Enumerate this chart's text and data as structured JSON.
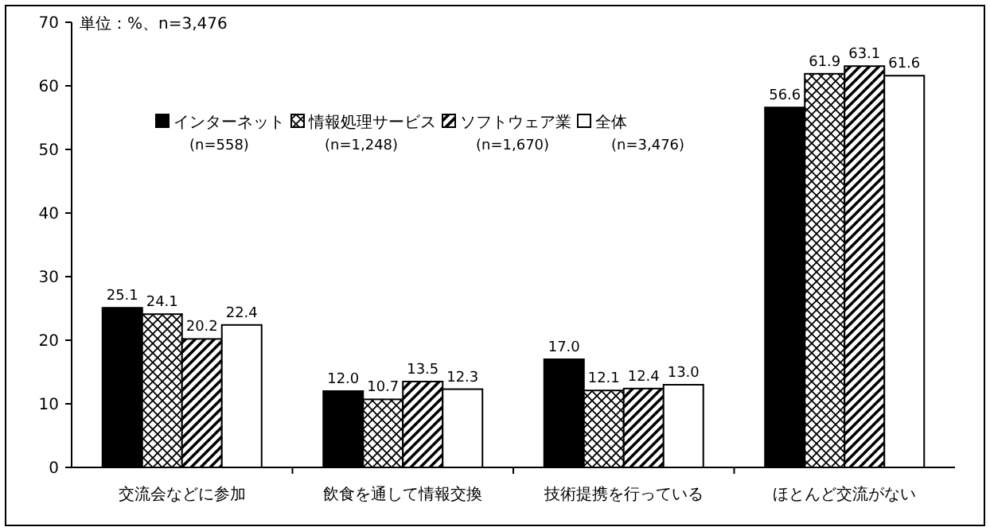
{
  "chart_data": {
    "type": "bar",
    "title": "単位：%、n=3,476",
    "categories": [
      "交流会などに参加",
      "飲食を通して情報交換",
      "技術提携を行っている",
      "ほとんど交流がない"
    ],
    "series": [
      {
        "name": "インターネット (n=558)",
        "color": "#000000",
        "values": [
          25.1,
          12.0,
          17.0,
          56.6
        ],
        "value_labels": [
          "25.1",
          "12.0",
          "17.0",
          "56.6"
        ]
      },
      {
        "name": "情報処理サービス (n=1,248)",
        "color": "#000000",
        "values": [
          24.1,
          10.7,
          12.1,
          61.9
        ],
        "value_labels": [
          "24.1",
          "10.7",
          "12.1",
          "61.9"
        ]
      },
      {
        "name": "ソフトウェア業 (n=1,670)",
        "color": "#000000",
        "values": [
          20.2,
          13.5,
          12.4,
          63.1
        ],
        "value_labels": [
          "20.2",
          "13.5",
          "12.4",
          "63.1"
        ]
      },
      {
        "name": "全体 (n=3,476)",
        "color": "#ffffff",
        "values": [
          22.4,
          12.3,
          13.0,
          61.6
        ],
        "value_labels": [
          "22.4",
          "12.3",
          "13.0",
          "61.6"
        ]
      }
    ],
    "ylim": [
      0,
      70
    ],
    "yticks": [
      0,
      10,
      20,
      30,
      40,
      50,
      60,
      70
    ],
    "grid": false,
    "legend": "top left"
  }
}
